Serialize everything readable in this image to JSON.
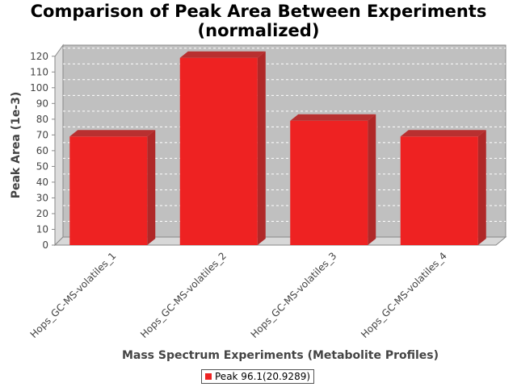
{
  "chart_data": {
    "type": "bar",
    "title_line1": "Comparison of Peak Area Between Experiments",
    "title_line2": "(normalized)",
    "xlabel": "Mass Spectrum Experiments (Metabolite Profiles)",
    "ylabel": "Peak Area (1e-3)",
    "categories": [
      "Hops_GC-MS-volatiles_1",
      "Hops_GC-MS-volatiles_2",
      "Hops_GC-MS-volatiles_3",
      "Hops_GC-MS-volatiles_4"
    ],
    "series": [
      {
        "name": "Peak 96.1(20.9289)",
        "values": [
          69,
          119,
          79,
          69
        ],
        "color": "#ee2222"
      }
    ],
    "ylim": [
      0,
      125
    ],
    "yticks": [
      0,
      10,
      20,
      30,
      40,
      50,
      60,
      70,
      80,
      90,
      100,
      110,
      120
    ],
    "grid": true,
    "legend_position": "bottom"
  }
}
